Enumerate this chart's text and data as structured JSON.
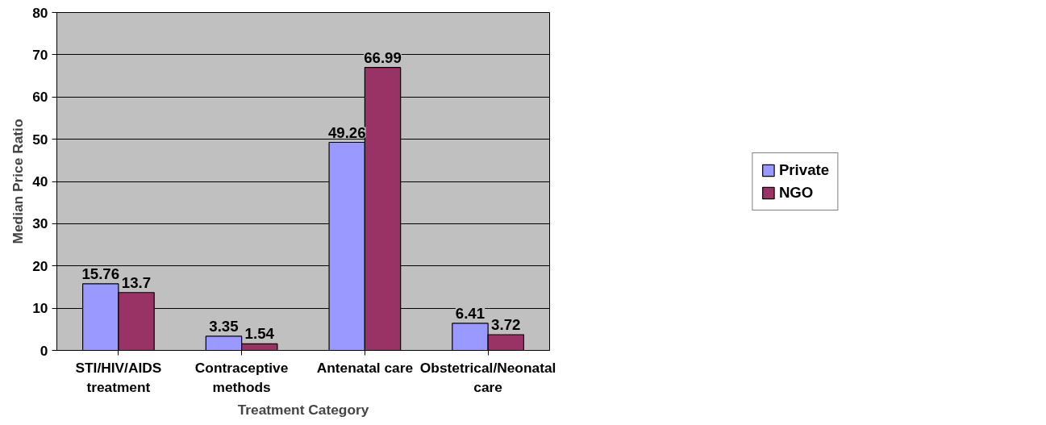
{
  "chart_data": {
    "type": "bar",
    "xlabel": "Treatment Category",
    "ylabel": "Median Price Ratio",
    "categories": [
      "STI/HIV/AIDS treatment",
      "Contraceptive methods",
      "Antenatal care",
      "Obstetrical/Neonatal care"
    ],
    "series": [
      {
        "name": "Private",
        "color": "#9999ff",
        "values": [
          15.76,
          3.35,
          49.26,
          6.41
        ]
      },
      {
        "name": "NGO",
        "color": "#993366",
        "values": [
          13.7,
          1.54,
          66.99,
          3.72
        ]
      }
    ],
    "ylim": [
      0,
      80
    ],
    "yticks": [
      0,
      10,
      20,
      30,
      40,
      50,
      60,
      70,
      80
    ],
    "grid": "y",
    "legend": "right",
    "data_labels": true
  }
}
